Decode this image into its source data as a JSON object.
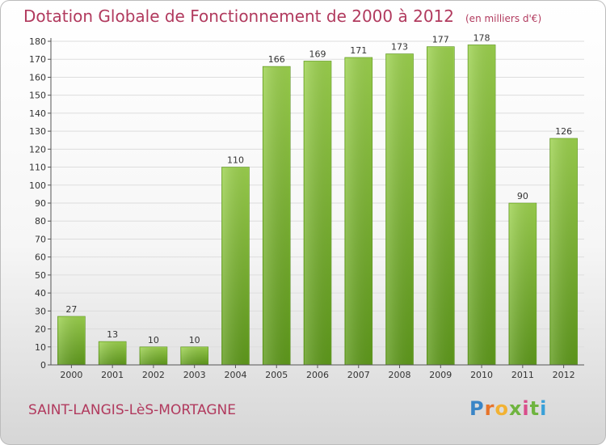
{
  "chart_data": {
    "type": "bar",
    "title": "Dotation Globale de Fonctionnement de 2000 à 2012",
    "unit_label": "(en milliers d'€)",
    "categories": [
      "2000",
      "2001",
      "2002",
      "2003",
      "2004",
      "2005",
      "2006",
      "2007",
      "2008",
      "2009",
      "2010",
      "2011",
      "2012"
    ],
    "values": [
      27,
      13,
      10,
      10,
      110,
      166,
      169,
      171,
      173,
      177,
      178,
      90,
      126
    ],
    "ylim": [
      0,
      180
    ],
    "yticks": [
      0,
      10,
      20,
      30,
      40,
      50,
      60,
      70,
      80,
      90,
      100,
      110,
      120,
      130,
      140,
      150,
      160,
      170,
      180
    ],
    "grid": true,
    "bar_color": "#8cc63f",
    "xlabel": "",
    "ylabel": ""
  },
  "commune": "SAINT-LANGIS-LèS-MORTAGNE",
  "logo": {
    "letters": [
      "P",
      "r",
      "o",
      "x",
      "i",
      "t",
      "i"
    ]
  },
  "colors": {
    "title": "#b13a5e",
    "grid": "#dddddd",
    "axis": "#555555"
  }
}
